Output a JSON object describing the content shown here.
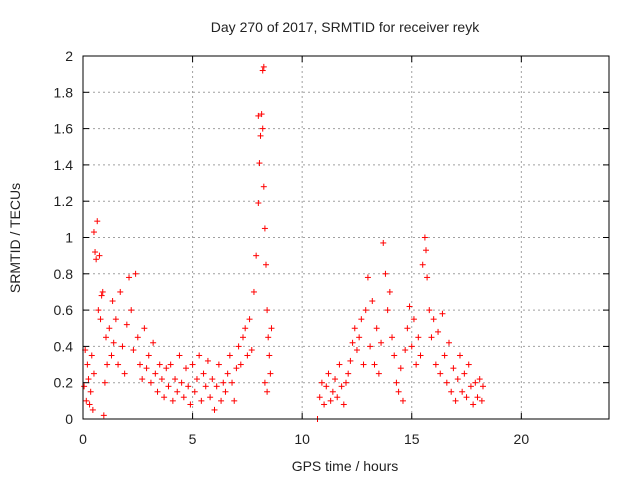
{
  "chart_data": {
    "type": "scatter",
    "title": "Day 270 of 2017, SRMTID for receiver reyk",
    "xlabel": "GPS time / hours",
    "ylabel": "SRMTID / TECUs",
    "xlim": [
      0,
      24
    ],
    "ylim": [
      0,
      2
    ],
    "xticks": [
      0,
      5,
      10,
      15,
      20
    ],
    "yticks": [
      0,
      0.2,
      0.4,
      0.6,
      0.8,
      1,
      1.2,
      1.4,
      1.6,
      1.8,
      2
    ],
    "grid": true,
    "marker": "+",
    "colors": {
      "series": "#ff0000",
      "grid": "#a0a0a0",
      "axis": "#000000"
    },
    "series": [
      {
        "name": "reyk",
        "points": [
          [
            0.05,
            0.18
          ],
          [
            0.1,
            0.38
          ],
          [
            0.15,
            0.1
          ],
          [
            0.2,
            0.3
          ],
          [
            0.25,
            0.22
          ],
          [
            0.3,
            0.08
          ],
          [
            0.35,
            0.15
          ],
          [
            0.4,
            0.35
          ],
          [
            0.45,
            0.05
          ],
          [
            0.5,
            0.25
          ],
          [
            0.5,
            1.03
          ],
          [
            0.55,
            0.92
          ],
          [
            0.6,
            0.88
          ],
          [
            0.65,
            1.09
          ],
          [
            0.7,
            0.6
          ],
          [
            0.75,
            0.9
          ],
          [
            0.8,
            0.55
          ],
          [
            0.85,
            0.68
          ],
          [
            0.9,
            0.7
          ],
          [
            0.95,
            0.02
          ],
          [
            1.0,
            0.2
          ],
          [
            1.05,
            0.45
          ],
          [
            1.1,
            0.3
          ],
          [
            1.2,
            0.5
          ],
          [
            1.3,
            0.35
          ],
          [
            1.35,
            0.65
          ],
          [
            1.4,
            0.42
          ],
          [
            1.5,
            0.55
          ],
          [
            1.6,
            0.3
          ],
          [
            1.7,
            0.7
          ],
          [
            1.8,
            0.4
          ],
          [
            1.9,
            0.25
          ],
          [
            2.0,
            0.52
          ],
          [
            2.1,
            0.78
          ],
          [
            2.2,
            0.6
          ],
          [
            2.3,
            0.38
          ],
          [
            2.4,
            0.8
          ],
          [
            2.5,
            0.45
          ],
          [
            2.6,
            0.3
          ],
          [
            2.7,
            0.22
          ],
          [
            2.8,
            0.5
          ],
          [
            2.9,
            0.28
          ],
          [
            3.0,
            0.35
          ],
          [
            3.1,
            0.2
          ],
          [
            3.2,
            0.42
          ],
          [
            3.3,
            0.25
          ],
          [
            3.4,
            0.15
          ],
          [
            3.5,
            0.3
          ],
          [
            3.6,
            0.22
          ],
          [
            3.7,
            0.12
          ],
          [
            3.8,
            0.28
          ],
          [
            3.9,
            0.18
          ],
          [
            4.0,
            0.3
          ],
          [
            4.1,
            0.1
          ],
          [
            4.2,
            0.22
          ],
          [
            4.3,
            0.15
          ],
          [
            4.4,
            0.35
          ],
          [
            4.5,
            0.2
          ],
          [
            4.6,
            0.12
          ],
          [
            4.7,
            0.28
          ],
          [
            4.8,
            0.18
          ],
          [
            4.9,
            0.08
          ],
          [
            5.0,
            0.3
          ],
          [
            5.1,
            0.15
          ],
          [
            5.2,
            0.22
          ],
          [
            5.3,
            0.35
          ],
          [
            5.4,
            0.1
          ],
          [
            5.5,
            0.25
          ],
          [
            5.6,
            0.18
          ],
          [
            5.7,
            0.32
          ],
          [
            5.8,
            0.12
          ],
          [
            5.9,
            0.22
          ],
          [
            6.0,
            0.05
          ],
          [
            6.1,
            0.18
          ],
          [
            6.2,
            0.3
          ],
          [
            6.3,
            0.1
          ],
          [
            6.4,
            0.2
          ],
          [
            6.5,
            0.15
          ],
          [
            6.6,
            0.25
          ],
          [
            6.7,
            0.35
          ],
          [
            6.8,
            0.2
          ],
          [
            6.9,
            0.1
          ],
          [
            7.0,
            0.28
          ],
          [
            7.1,
            0.4
          ],
          [
            7.2,
            0.3
          ],
          [
            7.3,
            0.45
          ],
          [
            7.4,
            0.5
          ],
          [
            7.5,
            0.35
          ],
          [
            7.6,
            0.55
          ],
          [
            7.7,
            0.38
          ],
          [
            7.8,
            0.7
          ],
          [
            7.9,
            0.9
          ],
          [
            8.0,
            1.19
          ],
          [
            8.0,
            1.67
          ],
          [
            8.05,
            1.41
          ],
          [
            8.1,
            1.56
          ],
          [
            8.15,
            1.68
          ],
          [
            8.2,
            1.6
          ],
          [
            8.25,
            1.28
          ],
          [
            8.3,
            1.05
          ],
          [
            8.2,
            1.92
          ],
          [
            8.25,
            1.94
          ],
          [
            8.35,
            0.85
          ],
          [
            8.4,
            0.6
          ],
          [
            8.45,
            0.45
          ],
          [
            8.5,
            0.35
          ],
          [
            8.55,
            0.25
          ],
          [
            8.6,
            0.5
          ],
          [
            8.3,
            0.2
          ],
          [
            8.4,
            0.15
          ],
          [
            10.7,
            0.0
          ],
          [
            10.8,
            0.12
          ],
          [
            10.9,
            0.2
          ],
          [
            11.0,
            0.08
          ],
          [
            11.1,
            0.18
          ],
          [
            11.2,
            0.25
          ],
          [
            11.3,
            0.1
          ],
          [
            11.4,
            0.15
          ],
          [
            11.5,
            0.22
          ],
          [
            11.6,
            0.12
          ],
          [
            11.7,
            0.3
          ],
          [
            11.8,
            0.18
          ],
          [
            11.9,
            0.08
          ],
          [
            12.0,
            0.2
          ],
          [
            12.1,
            0.25
          ],
          [
            12.2,
            0.32
          ],
          [
            12.3,
            0.42
          ],
          [
            12.4,
            0.5
          ],
          [
            12.5,
            0.38
          ],
          [
            12.6,
            0.45
          ],
          [
            12.7,
            0.55
          ],
          [
            12.8,
            0.3
          ],
          [
            12.9,
            0.6
          ],
          [
            13.0,
            0.78
          ],
          [
            13.1,
            0.4
          ],
          [
            13.2,
            0.65
          ],
          [
            13.3,
            0.3
          ],
          [
            13.4,
            0.5
          ],
          [
            13.5,
            0.25
          ],
          [
            13.6,
            0.42
          ],
          [
            13.7,
            0.97
          ],
          [
            13.8,
            0.8
          ],
          [
            13.9,
            0.6
          ],
          [
            14.0,
            0.7
          ],
          [
            14.1,
            0.45
          ],
          [
            14.2,
            0.35
          ],
          [
            14.3,
            0.2
          ],
          [
            14.4,
            0.15
          ],
          [
            14.5,
            0.28
          ],
          [
            14.6,
            0.1
          ],
          [
            14.7,
            0.38
          ],
          [
            14.8,
            0.5
          ],
          [
            14.9,
            0.62
          ],
          [
            15.0,
            0.4
          ],
          [
            15.1,
            0.55
          ],
          [
            15.2,
            0.3
          ],
          [
            15.3,
            0.45
          ],
          [
            15.4,
            0.35
          ],
          [
            15.5,
            0.85
          ],
          [
            15.6,
            1.0
          ],
          [
            15.65,
            0.93
          ],
          [
            15.7,
            0.78
          ],
          [
            15.8,
            0.6
          ],
          [
            15.9,
            0.45
          ],
          [
            16.0,
            0.55
          ],
          [
            16.1,
            0.3
          ],
          [
            16.2,
            0.48
          ],
          [
            16.3,
            0.25
          ],
          [
            16.4,
            0.58
          ],
          [
            16.5,
            0.35
          ],
          [
            16.6,
            0.2
          ],
          [
            16.7,
            0.42
          ],
          [
            16.8,
            0.15
          ],
          [
            16.9,
            0.28
          ],
          [
            17.0,
            0.1
          ],
          [
            17.1,
            0.22
          ],
          [
            17.2,
            0.35
          ],
          [
            17.3,
            0.15
          ],
          [
            17.4,
            0.25
          ],
          [
            17.5,
            0.12
          ],
          [
            17.6,
            0.3
          ],
          [
            17.7,
            0.18
          ],
          [
            17.8,
            0.08
          ],
          [
            17.9,
            0.2
          ],
          [
            18.0,
            0.12
          ],
          [
            18.1,
            0.22
          ],
          [
            18.2,
            0.1
          ],
          [
            18.25,
            0.18
          ]
        ]
      }
    ]
  }
}
